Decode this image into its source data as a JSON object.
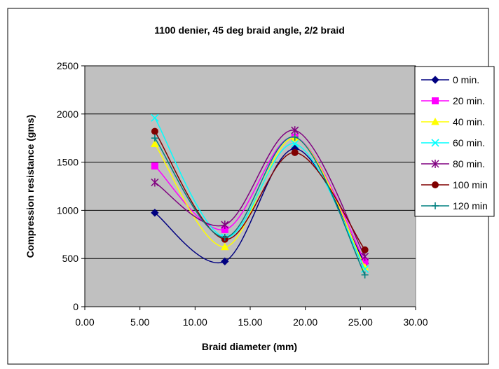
{
  "chart_data": {
    "type": "line",
    "title": "1100 denier, 45 deg braid angle, 2/2 braid",
    "xlabel": "Braid diameter (mm)",
    "ylabel": "Compression resistance (gms)",
    "xlim": [
      0,
      30
    ],
    "ylim": [
      0,
      2500
    ],
    "xticks": [
      "0.00",
      "5.00",
      "10.00",
      "15.00",
      "20.00",
      "25.00",
      "30.00"
    ],
    "yticks": [
      "0",
      "500",
      "1000",
      "1500",
      "2000",
      "2500"
    ],
    "xtick_values": [
      0,
      5,
      10,
      15,
      20,
      25,
      30
    ],
    "ytick_values": [
      0,
      500,
      1000,
      1500,
      2000,
      2500
    ],
    "grid": "horizontal",
    "legend_position": "right",
    "plot_background": "#c0c0c0",
    "x": [
      6.35,
      12.7,
      19.05,
      25.4
    ],
    "series": [
      {
        "name": "0 min.",
        "values": [
          975,
          470,
          1640,
          450
        ],
        "color": "#000080",
        "marker": "diamond"
      },
      {
        "name": "20 min.",
        "values": [
          1460,
          800,
          1760,
          470
        ],
        "color": "#ff00ff",
        "marker": "square"
      },
      {
        "name": "40 min.",
        "values": [
          1690,
          620,
          1750,
          410
        ],
        "color": "#ffff00",
        "marker": "triangle"
      },
      {
        "name": "60 min.",
        "values": [
          1960,
          720,
          1690,
          390
        ],
        "color": "#00ffff",
        "marker": "x"
      },
      {
        "name": "80 min.",
        "values": [
          1290,
          850,
          1830,
          520
        ],
        "color": "#800080",
        "marker": "star"
      },
      {
        "name": "100 min",
        "values": [
          1820,
          700,
          1600,
          590
        ],
        "color": "#800000",
        "marker": "circle"
      },
      {
        "name": "120 min",
        "values": [
          1750,
          720,
          1760,
          330
        ],
        "color": "#008080",
        "marker": "plus"
      }
    ]
  }
}
